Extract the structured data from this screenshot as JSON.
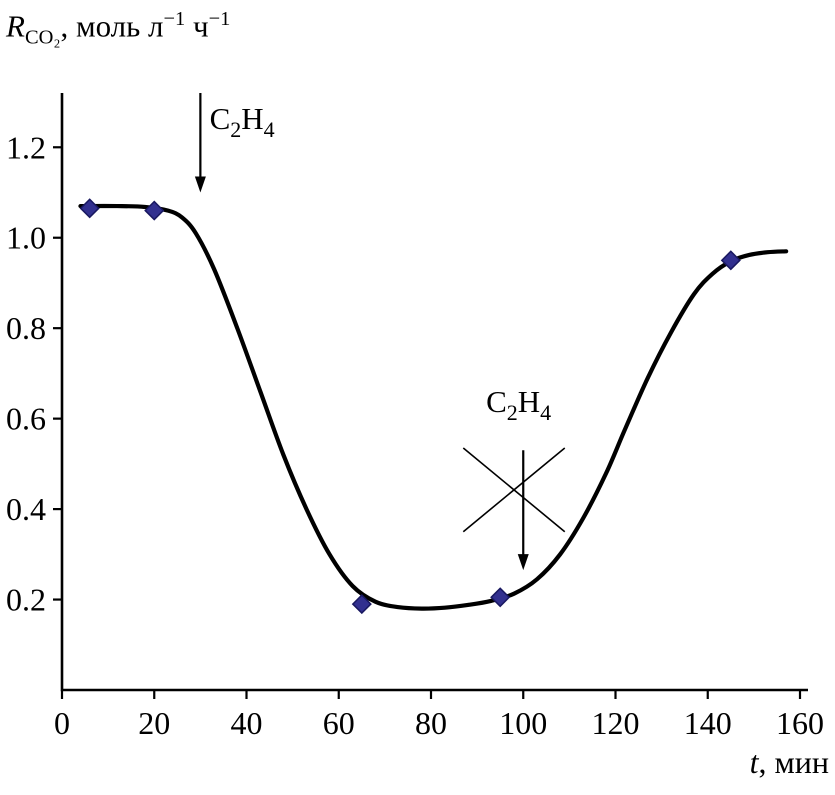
{
  "chart_data": {
    "type": "line",
    "ylabel": "R_CO2, моль л^-1 ч^-1",
    "ylabel_parts": {
      "symbol": "R",
      "symbol_sub": "CO₂",
      "rest": ", моль л",
      "sup1": "−1",
      "mid": " ч",
      "sup2": "−1"
    },
    "xlabel": "t, мин",
    "xlabel_parts": {
      "symbol": "t",
      "rest": ", мин"
    },
    "xlim": [
      0,
      160
    ],
    "ylim": [
      0,
      1.32
    ],
    "grid": false,
    "legend": "none",
    "x_tick_values": [
      0,
      20,
      40,
      60,
      80,
      100,
      120,
      140,
      160
    ],
    "x_tick_labels": [
      "0",
      "20",
      "40",
      "60",
      "80",
      "100",
      "120",
      "140",
      "160"
    ],
    "y_tick_values": [
      0.2,
      0.4,
      0.6,
      0.8,
      1.0,
      1.2
    ],
    "y_tick_labels": [
      "0.2",
      "0.4",
      "0.6",
      "0.8",
      "1.0",
      "1.2"
    ],
    "curve": [
      [
        4,
        1.07
      ],
      [
        12,
        1.07
      ],
      [
        18,
        1.068
      ],
      [
        23,
        1.06
      ],
      [
        26,
        1.045
      ],
      [
        29,
        1.01
      ],
      [
        33,
        0.93
      ],
      [
        38,
        0.8
      ],
      [
        43,
        0.66
      ],
      [
        48,
        0.52
      ],
      [
        53,
        0.4
      ],
      [
        58,
        0.3
      ],
      [
        63,
        0.23
      ],
      [
        68,
        0.195
      ],
      [
        73,
        0.183
      ],
      [
        78,
        0.18
      ],
      [
        83,
        0.182
      ],
      [
        88,
        0.188
      ],
      [
        93,
        0.197
      ],
      [
        98,
        0.213
      ],
      [
        103,
        0.245
      ],
      [
        108,
        0.3
      ],
      [
        113,
        0.38
      ],
      [
        118,
        0.48
      ],
      [
        122,
        0.575
      ],
      [
        127,
        0.69
      ],
      [
        132,
        0.79
      ],
      [
        137,
        0.875
      ],
      [
        141,
        0.92
      ],
      [
        145,
        0.948
      ],
      [
        149,
        0.962
      ],
      [
        153,
        0.968
      ],
      [
        157,
        0.97
      ]
    ],
    "points": [
      [
        6,
        1.065
      ],
      [
        20,
        1.06
      ],
      [
        65,
        0.19
      ],
      [
        95,
        0.205
      ],
      [
        145,
        0.95
      ]
    ],
    "annotations": [
      {
        "label": "C2H4",
        "label_parts": [
          {
            "t": "C"
          },
          {
            "t": "2",
            "sub": true
          },
          {
            "t": "H"
          },
          {
            "t": "4",
            "sub": true
          }
        ],
        "label_x": 32,
        "label_y": 1.24,
        "anchor": "start",
        "arrow_x": 30,
        "arrow_y_from": 1.32,
        "arrow_y_to": 1.1,
        "crossed": false
      },
      {
        "label": "C2H4",
        "label_parts": [
          {
            "t": "C"
          },
          {
            "t": "2",
            "sub": true
          },
          {
            "t": "H"
          },
          {
            "t": "4",
            "sub": true
          }
        ],
        "label_x": 99,
        "label_y": 0.615,
        "anchor": "middle",
        "arrow_x": 100,
        "arrow_y_from": 0.53,
        "arrow_y_to": 0.265,
        "crossed": true,
        "cross": {
          "x_min": 87,
          "x_max": 109,
          "y_min": 0.35,
          "y_max": 0.535
        }
      }
    ],
    "colors": {
      "curve": "#000000",
      "axis": "#000000",
      "point_fill": "#32308f",
      "point_stroke": "#191860",
      "annotation": "#000000"
    }
  }
}
